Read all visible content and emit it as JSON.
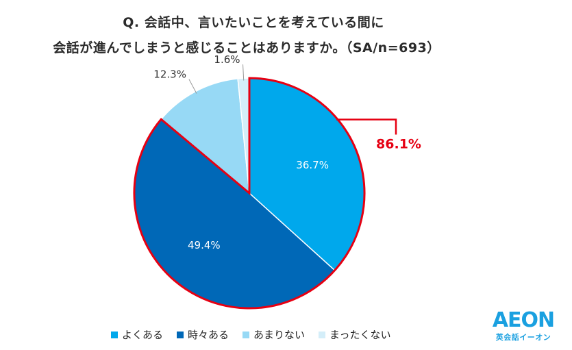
{
  "title": {
    "line1": "Q. 会話中、言いたいことを考えている間に",
    "line2": "会話が進んでしまうと感じることはありますか。（SA/n=693）"
  },
  "chart_data": {
    "type": "pie",
    "categories": [
      "よくある",
      "時々ある",
      "あまりない",
      "まったくない"
    ],
    "values": [
      36.7,
      49.4,
      12.3,
      1.6
    ],
    "labels": [
      "36.7%",
      "49.4%",
      "12.3%",
      "1.6%"
    ],
    "colors": [
      "#00a8ec",
      "#0068b7",
      "#97d9f5",
      "#d4eef9"
    ],
    "highlight": {
      "label": "86.1%",
      "color": "#e60012",
      "covers": [
        "よくある",
        "時々ある"
      ]
    },
    "legend_position": "bottom"
  },
  "legend": [
    {
      "label": "よくある",
      "color": "#00a8ec"
    },
    {
      "label": "時々ある",
      "color": "#0068b7"
    },
    {
      "label": "あまりない",
      "color": "#97d9f5"
    },
    {
      "label": "まったくない",
      "color": "#d4eef9"
    }
  ],
  "logo": {
    "main": "AEON",
    "sub": "英会話イーオン"
  }
}
